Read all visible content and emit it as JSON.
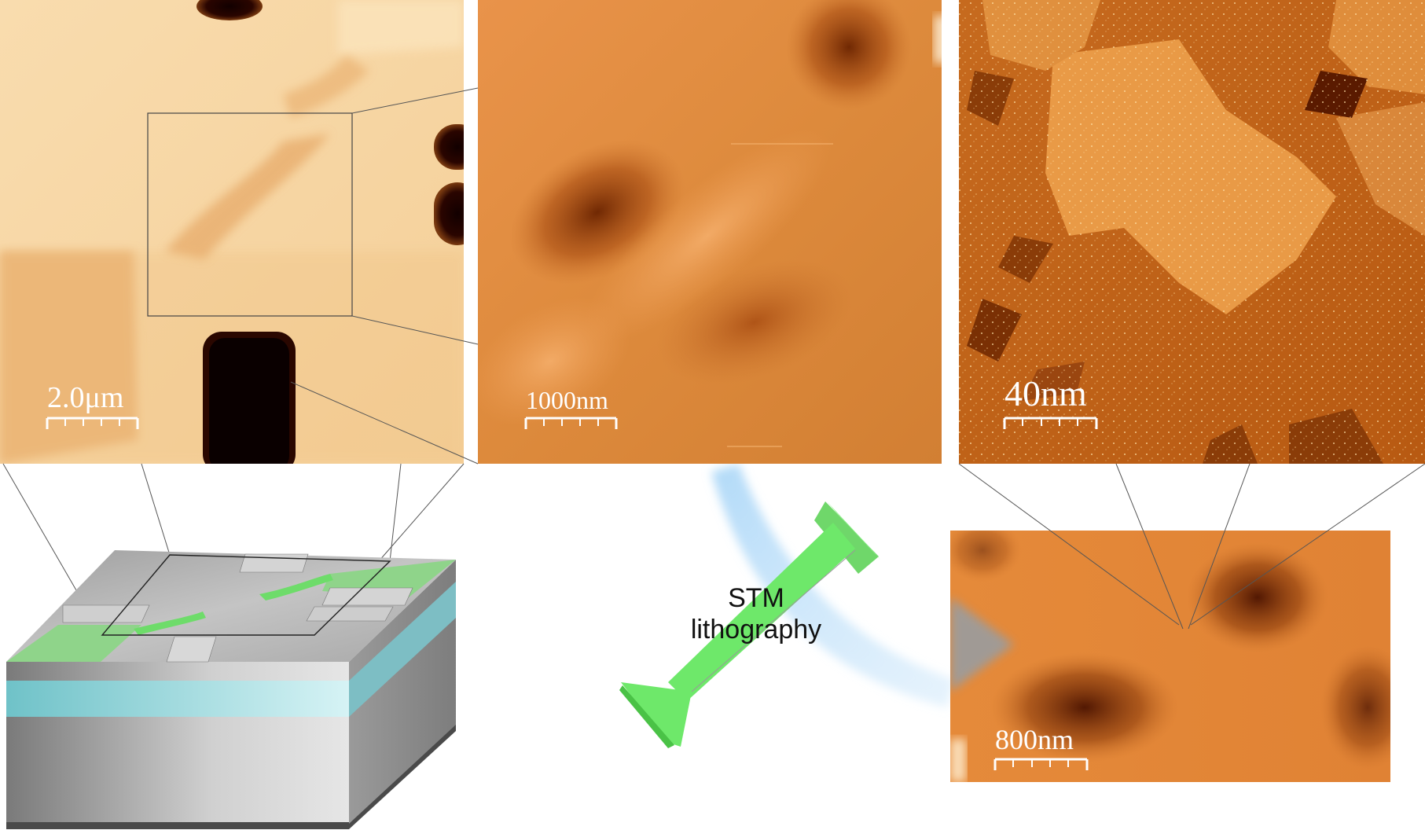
{
  "panels": {
    "panel_1": {
      "scale_label": "2.0μm"
    },
    "panel_2": {
      "scale_label": "1000nm"
    },
    "panel_3": {
      "scale_label": "40nm"
    },
    "panel_4": {
      "scale_label": "800nm"
    }
  },
  "arrow_label": {
    "line1": "STM",
    "line2": "lithography"
  },
  "colors": {
    "afm_light": "#f6d29e",
    "afm_mid": "#d27a2c",
    "afm_dark": "#3a0a00",
    "stm_orange": "#e88a3a",
    "device_gray": "#b8b8b8",
    "device_teal": "#9fdbe0",
    "contact_green": "#8fd48a",
    "nanowire_green": "#6ee86a",
    "arrow_blue": "#a9d6f7"
  }
}
